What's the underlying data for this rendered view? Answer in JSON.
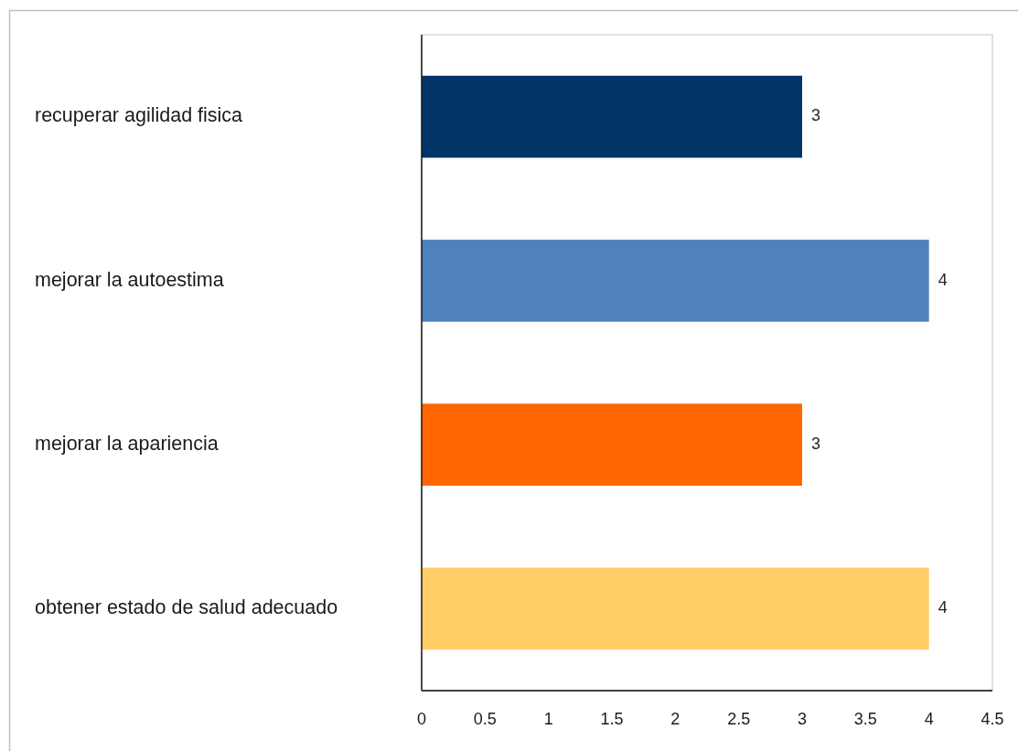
{
  "chart_data": {
    "type": "bar",
    "orientation": "horizontal",
    "categories": [
      "recuperar agilidad fisica",
      "mejorar la autoestima",
      "mejorar la apariencia",
      "obtener estado de salud adecuado"
    ],
    "values": [
      3,
      4,
      3,
      4
    ],
    "colors": [
      "#003366",
      "#4f81bd",
      "#ff6600",
      "#ffcc66"
    ],
    "xlim": [
      0,
      4.5
    ],
    "xticks": [
      0,
      0.5,
      1,
      1.5,
      2,
      2.5,
      3,
      3.5,
      4,
      4.5
    ],
    "data_labels": true
  }
}
